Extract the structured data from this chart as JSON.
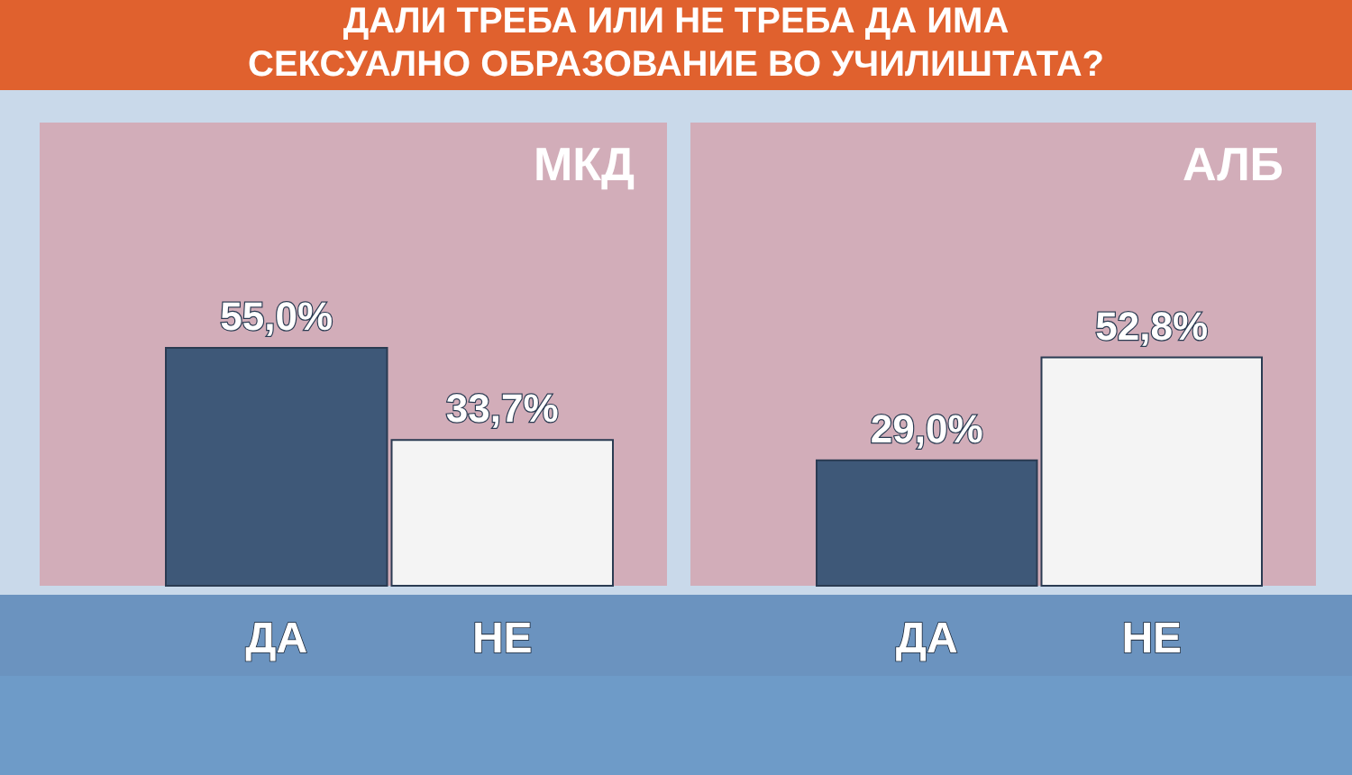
{
  "chart_data": [
    {
      "type": "bar",
      "title": "ДАЛИ ТРЕБА ИЛИ НЕ ТРЕБА ДА ИМА СЕКСУАЛНО ОБРАЗОВАНИЕ ВО УЧИЛИШТАТА?",
      "subtitle": "МКД",
      "categories": [
        "ДА",
        "НЕ"
      ],
      "values": [
        55.0,
        33.7
      ],
      "colors": [
        "#3e5878",
        "#f4f4f4"
      ],
      "value_labels": [
        "55,0%",
        "33,7%"
      ],
      "relative": false
    },
    {
      "type": "bar",
      "title": "АЛБ",
      "categories": [
        "ДА",
        "НЕ"
      ],
      "values": [
        29.0,
        52.8
      ],
      "colors": [
        "#3e5878",
        "#f4f4f4"
      ],
      "value_labels": [
        "29,0%",
        "52,8%"
      ],
      "relative": false
    }
  ]
}
